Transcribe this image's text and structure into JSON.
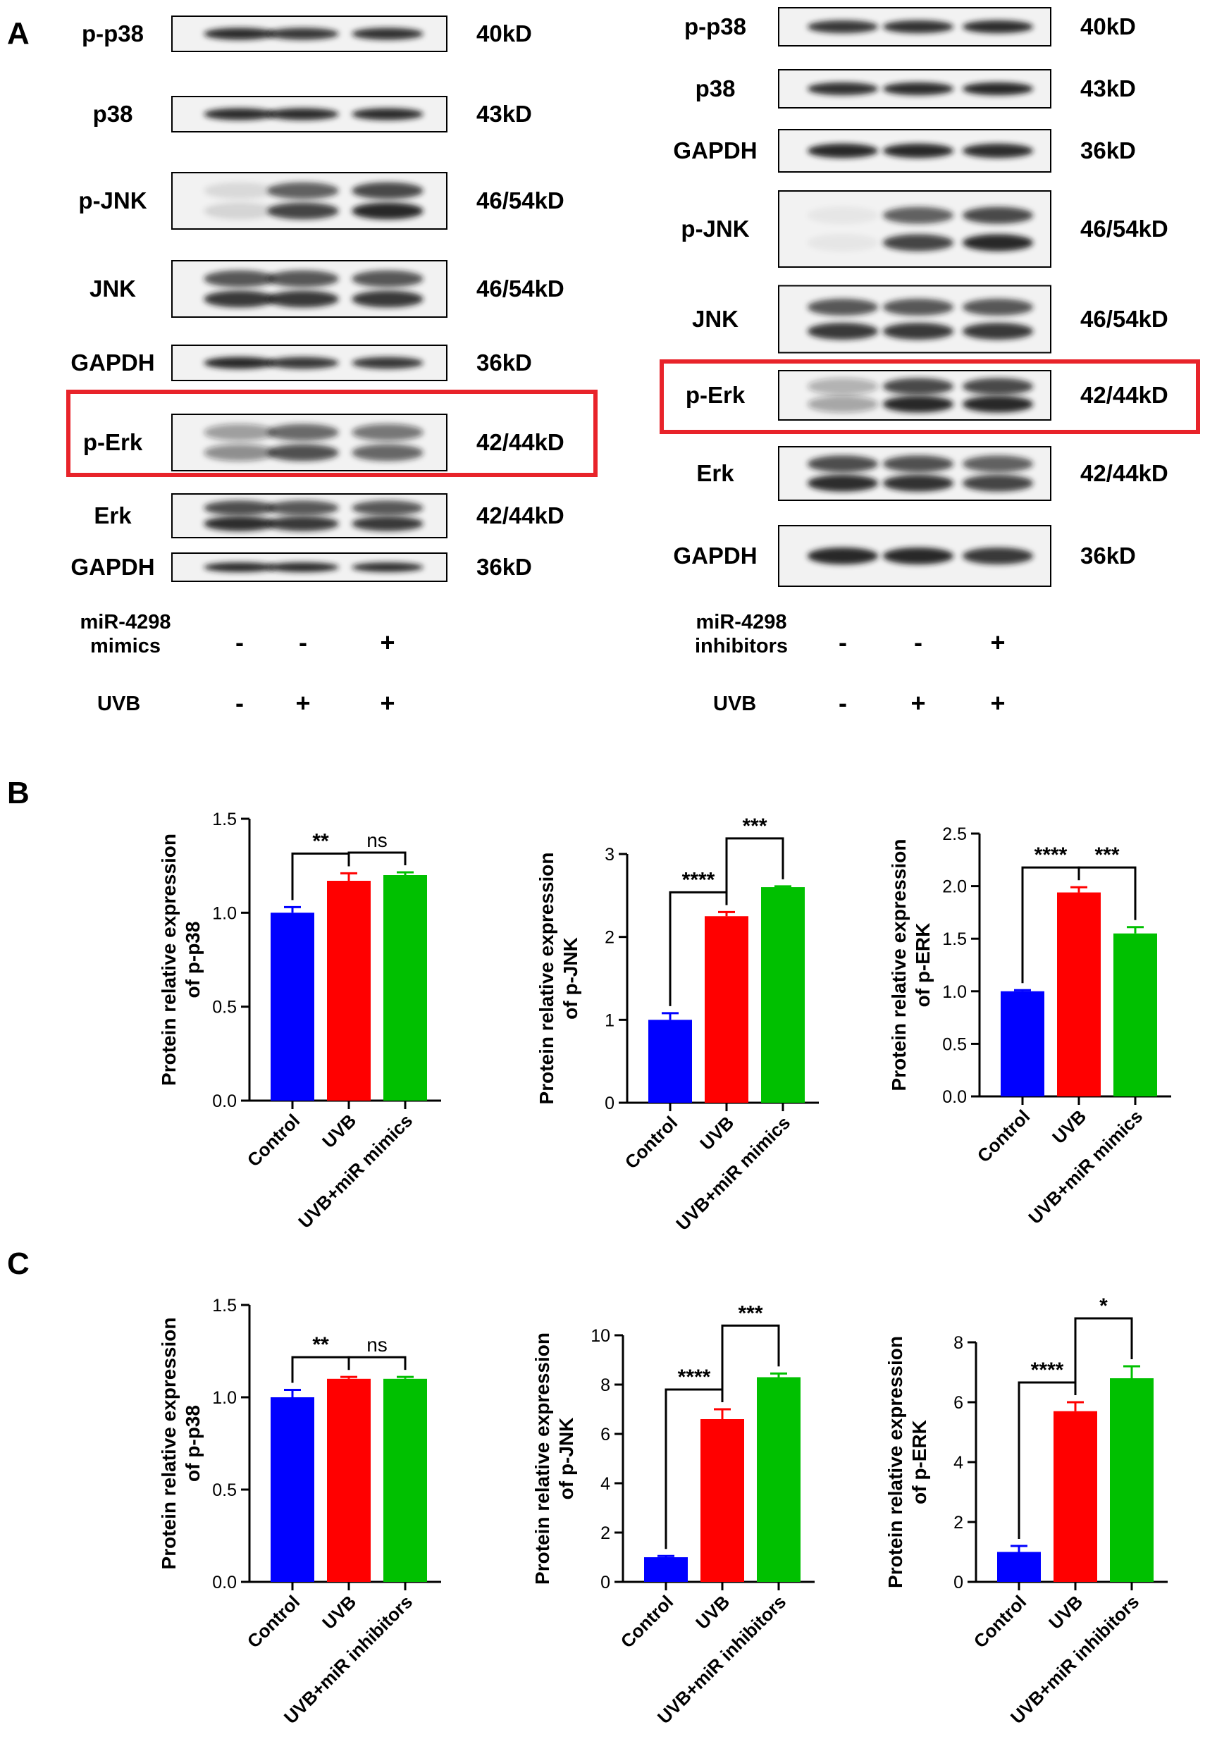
{
  "panel_letters": [
    "A",
    "B",
    "C"
  ],
  "colors": {
    "control": "#0000ff",
    "uvb": "#ff0000",
    "treatment": "#00c000",
    "highlight": "#e8232a",
    "band": "#1a1a1a"
  },
  "blots": [
    {
      "group_header": "",
      "rows": [
        {
          "name": "p-p38",
          "size": "40kD",
          "bands": 1,
          "lane_intensity": [
            0.9,
            0.85,
            0.88
          ],
          "highlight": false
        },
        {
          "name": "p38",
          "size": "43kD",
          "bands": 1,
          "lane_intensity": [
            0.9,
            0.9,
            0.9
          ],
          "highlight": false
        },
        {
          "name": "p-JNK",
          "size": "46/54kD",
          "bands": 2,
          "lane_intensity": [
            0.12,
            0.8,
            0.92
          ],
          "highlight": false
        },
        {
          "name": "JNK",
          "size": "46/54kD",
          "bands": 2,
          "lane_intensity": [
            0.85,
            0.85,
            0.85
          ],
          "highlight": false
        },
        {
          "name": "GAPDH",
          "size": "36kD",
          "bands": 1,
          "lane_intensity": [
            0.95,
            0.85,
            0.85
          ],
          "highlight": false
        },
        {
          "name": "p-Erk",
          "size": "42/44kD",
          "bands": 2,
          "lane_intensity": [
            0.45,
            0.75,
            0.65
          ],
          "highlight": true
        },
        {
          "name": "Erk",
          "size": "42/44kD",
          "bands": 2,
          "lane_intensity": [
            0.9,
            0.85,
            0.85
          ],
          "highlight": false
        },
        {
          "name": "GAPDH",
          "size": "36kD",
          "bands": 1,
          "lane_intensity": [
            0.95,
            0.95,
            0.9
          ],
          "highlight": false
        }
      ],
      "treatments": [
        {
          "label_line1": "miR-4298",
          "label_line2": "mimics",
          "signs": [
            "-",
            "-",
            "+"
          ]
        },
        {
          "label_line1": "UVB",
          "label_line2": "",
          "signs": [
            "-",
            "+",
            "+"
          ]
        }
      ]
    },
    {
      "group_header": "",
      "rows": [
        {
          "name": "p-p38",
          "size": "40kD",
          "bands": 1,
          "lane_intensity": [
            0.85,
            0.88,
            0.9
          ],
          "highlight": false
        },
        {
          "name": "p38",
          "size": "43kD",
          "bands": 1,
          "lane_intensity": [
            0.88,
            0.9,
            0.92
          ],
          "highlight": false
        },
        {
          "name": "GAPDH",
          "size": "36kD",
          "bands": 1,
          "lane_intensity": [
            0.92,
            0.92,
            0.9
          ],
          "highlight": false
        },
        {
          "name": "p-JNK",
          "size": "46/54kD",
          "bands": 2,
          "lane_intensity": [
            0.05,
            0.8,
            0.92
          ],
          "highlight": false
        },
        {
          "name": "JNK",
          "size": "46/54kD",
          "bands": 2,
          "lane_intensity": [
            0.85,
            0.85,
            0.85
          ],
          "highlight": false
        },
        {
          "name": "p-Erk",
          "size": "42/44kD",
          "bands": 2,
          "lane_intensity": [
            0.35,
            0.92,
            0.92
          ],
          "highlight": true
        },
        {
          "name": "Erk",
          "size": "42/44kD",
          "bands": 2,
          "lane_intensity": [
            0.9,
            0.88,
            0.8
          ],
          "highlight": false
        },
        {
          "name": "GAPDH",
          "size": "36kD",
          "bands": 1,
          "lane_intensity": [
            0.95,
            0.92,
            0.85
          ],
          "highlight": false
        }
      ],
      "treatments": [
        {
          "label_line1": "miR-4298",
          "label_line2": "inhibitors",
          "signs": [
            "-",
            "-",
            "+"
          ]
        },
        {
          "label_line1": "UVB",
          "label_line2": "",
          "signs": [
            "-",
            "+",
            "+"
          ]
        }
      ]
    }
  ],
  "chart_data": [
    {
      "panel": "B",
      "type": "bar",
      "ylabel": [
        "Protein relative expression",
        "of p-p38"
      ],
      "categories": [
        "Control",
        "UVB",
        "UVB+miR mimics"
      ],
      "values": [
        1.0,
        1.17,
        1.2
      ],
      "errors": [
        0.03,
        0.04,
        0.015
      ],
      "ylim": [
        0,
        1.5
      ],
      "yticks": [
        "0.0",
        "0.5",
        "1.0",
        "1.5"
      ],
      "brackets": [
        {
          "from": 0,
          "to": 1,
          "label": "**"
        },
        {
          "from": 1,
          "to": 2,
          "label": "ns"
        }
      ]
    },
    {
      "panel": "B",
      "type": "bar",
      "ylabel": [
        "Protein relative expression",
        "of p-JNK"
      ],
      "categories": [
        "Control",
        "UVB",
        "UVB+miR mimics"
      ],
      "values": [
        1.0,
        2.25,
        2.6
      ],
      "errors": [
        0.08,
        0.05,
        0.01
      ],
      "ylim": [
        0,
        3
      ],
      "yticks": [
        "0",
        "1",
        "2",
        "3"
      ],
      "brackets": [
        {
          "from": 0,
          "to": 1,
          "label": "****"
        },
        {
          "from": 1,
          "to": 2,
          "label": "***"
        }
      ]
    },
    {
      "panel": "B",
      "type": "bar",
      "ylabel": [
        "Protein relative expression",
        "of p-ERK"
      ],
      "categories": [
        "Control",
        "UVB",
        "UVB+miR mimics"
      ],
      "values": [
        1.0,
        1.94,
        1.55
      ],
      "errors": [
        0.01,
        0.05,
        0.06
      ],
      "ylim": [
        0,
        2.5
      ],
      "yticks": [
        "0.0",
        "0.5",
        "1.0",
        "1.5",
        "2.0",
        "2.5"
      ],
      "brackets": [
        {
          "from": 0,
          "to": 1,
          "label": "****"
        },
        {
          "from": 1,
          "to": 2,
          "label": "***"
        }
      ]
    },
    {
      "panel": "C",
      "type": "bar",
      "ylabel": [
        "Protein relative expression",
        "of p-p38"
      ],
      "categories": [
        "Control",
        "UVB",
        "UVB+miR inhibitors"
      ],
      "values": [
        1.0,
        1.1,
        1.1
      ],
      "errors": [
        0.04,
        0.01,
        0.01
      ],
      "ylim": [
        0,
        1.5
      ],
      "yticks": [
        "0.0",
        "0.5",
        "1.0",
        "1.5"
      ],
      "brackets": [
        {
          "from": 0,
          "to": 1,
          "label": "**"
        },
        {
          "from": 1,
          "to": 2,
          "label": "ns"
        }
      ]
    },
    {
      "panel": "C",
      "type": "bar",
      "ylabel": [
        "Protein relative expression",
        "of p-JNK"
      ],
      "categories": [
        "Control",
        "UVB",
        "UVB+miR inhibitors"
      ],
      "values": [
        1.0,
        6.6,
        8.3
      ],
      "errors": [
        0.05,
        0.4,
        0.15
      ],
      "ylim": [
        0,
        10
      ],
      "yticks": [
        "0",
        "2",
        "4",
        "6",
        "8",
        "10"
      ],
      "brackets": [
        {
          "from": 0,
          "to": 1,
          "label": "****"
        },
        {
          "from": 1,
          "to": 2,
          "label": "***"
        }
      ]
    },
    {
      "panel": "C",
      "type": "bar",
      "ylabel": [
        "Protein relative expression",
        "of p-ERK"
      ],
      "categories": [
        "Control",
        "UVB",
        "UVB+miR inhibitors"
      ],
      "values": [
        1.0,
        5.7,
        6.8
      ],
      "errors": [
        0.2,
        0.3,
        0.4
      ],
      "ylim": [
        0,
        8
      ],
      "yticks": [
        "0",
        "2",
        "4",
        "6",
        "8"
      ],
      "brackets": [
        {
          "from": 0,
          "to": 1,
          "label": "****"
        },
        {
          "from": 1,
          "to": 2,
          "label": "*"
        }
      ]
    }
  ]
}
